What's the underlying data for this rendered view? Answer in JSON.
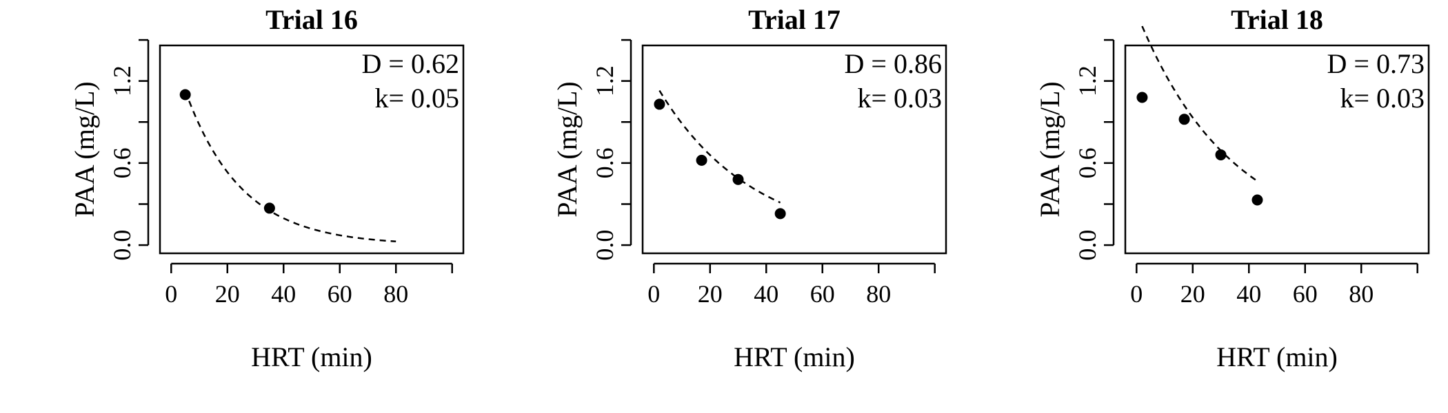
{
  "chart_data": [
    {
      "type": "scatter",
      "title": "Trial 16",
      "xlabel": "HRT (min)",
      "ylabel": "PAA (mg/L)",
      "xlim": [
        -4,
        104
      ],
      "ylim": [
        -0.06,
        1.46
      ],
      "x_ticks": [
        "0",
        "20",
        "40",
        "60",
        "80"
      ],
      "x_tick_values": [
        0,
        20,
        40,
        60,
        80,
        100
      ],
      "y_ticks": [
        "0.0",
        "0.6",
        "1.2"
      ],
      "y_tick_values": [
        0,
        0.3,
        0.6,
        0.9,
        1.2,
        1.5
      ],
      "points": {
        "x": [
          5,
          35
        ],
        "y": [
          1.1,
          0.27
        ]
      },
      "fit": {
        "D": 0.62,
        "k": 0.05,
        "c0": 1.45,
        "x_range": [
          5,
          80
        ]
      },
      "annotations": [
        "D = 0.62",
        "k= 0.05"
      ]
    },
    {
      "type": "scatter",
      "title": "Trial 17",
      "xlabel": "HRT (min)",
      "ylabel": "PAA (mg/L)",
      "xlim": [
        -4,
        104
      ],
      "ylim": [
        -0.06,
        1.46
      ],
      "x_ticks": [
        "0",
        "20",
        "40",
        "60",
        "80"
      ],
      "x_tick_values": [
        0,
        20,
        40,
        60,
        80,
        100
      ],
      "y_ticks": [
        "0.0",
        "0.6",
        "1.2"
      ],
      "y_tick_values": [
        0,
        0.3,
        0.6,
        0.9,
        1.2,
        1.5
      ],
      "points": {
        "x": [
          2,
          17,
          30,
          45
        ],
        "y": [
          1.03,
          0.62,
          0.48,
          0.23
        ]
      },
      "fit": {
        "D": 0.86,
        "k": 0.03,
        "c0": 1.2,
        "x_range": [
          2,
          45
        ]
      },
      "annotations": [
        "D = 0.86",
        "k= 0.03"
      ]
    },
    {
      "type": "scatter",
      "title": "Trial 18",
      "xlabel": "HRT (min)",
      "ylabel": "PAA (mg/L)",
      "xlim": [
        -4,
        104
      ],
      "ylim": [
        -0.06,
        1.46
      ],
      "x_ticks": [
        "0",
        "20",
        "40",
        "60",
        "80"
      ],
      "x_tick_values": [
        0,
        20,
        40,
        60,
        80,
        100
      ],
      "y_ticks": [
        "0.0",
        "0.6",
        "1.2"
      ],
      "y_tick_values": [
        0,
        0.3,
        0.6,
        0.9,
        1.2,
        1.5
      ],
      "points": {
        "x": [
          2,
          17,
          30,
          43
        ],
        "y": [
          1.08,
          0.92,
          0.66,
          0.33
        ]
      },
      "fit": {
        "D": 0.73,
        "k": 0.03,
        "c0": 1.7,
        "x_range": [
          2,
          43
        ]
      },
      "annotations": [
        "D = 0.73",
        "k= 0.03"
      ]
    }
  ]
}
